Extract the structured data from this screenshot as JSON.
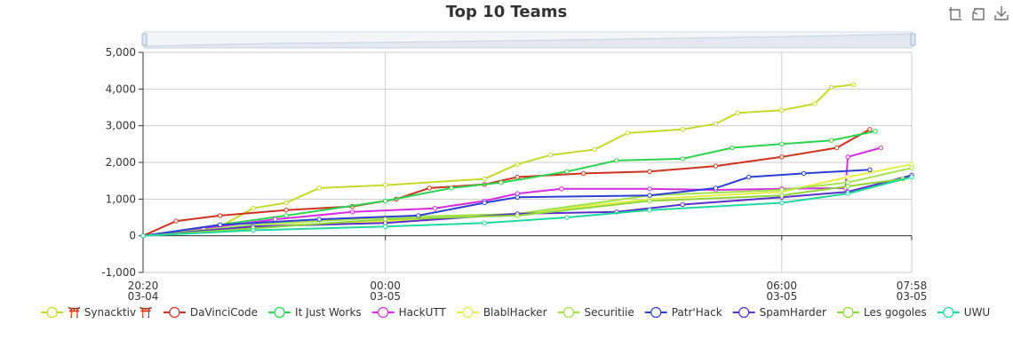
{
  "chart_data": {
    "type": "line",
    "title": "Top 10 Teams",
    "xlabel": "",
    "ylabel": "",
    "ylim": [
      -1000,
      5000
    ],
    "yticks": [
      "-1,000",
      "0",
      "1,000",
      "2,000",
      "3,000",
      "4,000",
      "5,000"
    ],
    "ytick_values": [
      -1000,
      0,
      1000,
      2000,
      3000,
      4000,
      5000
    ],
    "xlim": [
      "2024-03-04 20:20",
      "2024-03-05 07:58"
    ],
    "xticks": [
      {
        "time": "2024-03-04 20:20",
        "line1": "20:20",
        "line2": "03-04"
      },
      {
        "time": "2024-03-05 00:00",
        "line1": "00:00",
        "line2": "03-05"
      },
      {
        "time": "2024-03-05 06:00",
        "line1": "06:00",
        "line2": "03-05"
      },
      {
        "time": "2024-03-05 07:58",
        "line1": "07:58",
        "line2": "03-05"
      }
    ],
    "grid": true,
    "legend_position": "bottom",
    "data_zoom_slider": true,
    "series": [
      {
        "name": "⛩️ Synacktiv ⛩️",
        "color": "#c5d92b",
        "points": [
          [
            "2024-03-04 20:20",
            0
          ],
          [
            "2024-03-04 21:30",
            250
          ],
          [
            "2024-03-04 22:00",
            750
          ],
          [
            "2024-03-04 22:30",
            900
          ],
          [
            "2024-03-04 23:00",
            1300
          ],
          [
            "2024-03-05 00:00",
            1380
          ],
          [
            "2024-03-05 01:30",
            1550
          ],
          [
            "2024-03-05 02:00",
            1950
          ],
          [
            "2024-03-05 02:30",
            2200
          ],
          [
            "2024-03-05 03:10",
            2350
          ],
          [
            "2024-03-05 03:40",
            2800
          ],
          [
            "2024-03-05 04:30",
            2900
          ],
          [
            "2024-03-05 05:00",
            3050
          ],
          [
            "2024-03-05 05:20",
            3350
          ],
          [
            "2024-03-05 06:00",
            3420
          ],
          [
            "2024-03-05 06:30",
            3600
          ],
          [
            "2024-03-05 06:45",
            4050
          ],
          [
            "2024-03-05 07:05",
            4120
          ]
        ]
      },
      {
        "name": "DaVinciCode",
        "color": "#d0321f",
        "points": [
          [
            "2024-03-04 20:20",
            0
          ],
          [
            "2024-03-04 20:50",
            400
          ],
          [
            "2024-03-04 21:30",
            550
          ],
          [
            "2024-03-04 22:30",
            700
          ],
          [
            "2024-03-04 23:30",
            800
          ],
          [
            "2024-03-05 00:10",
            1000
          ],
          [
            "2024-03-05 00:40",
            1300
          ],
          [
            "2024-03-05 01:30",
            1400
          ],
          [
            "2024-03-05 02:00",
            1600
          ],
          [
            "2024-03-05 03:00",
            1700
          ],
          [
            "2024-03-05 04:00",
            1750
          ],
          [
            "2024-03-05 05:00",
            1900
          ],
          [
            "2024-03-05 06:00",
            2150
          ],
          [
            "2024-03-05 06:50",
            2400
          ],
          [
            "2024-03-05 07:20",
            2900
          ]
        ]
      },
      {
        "name": "It Just Works",
        "color": "#2dd34f",
        "points": [
          [
            "2024-03-04 20:20",
            0
          ],
          [
            "2024-03-04 21:30",
            300
          ],
          [
            "2024-03-04 22:30",
            550
          ],
          [
            "2024-03-05 00:00",
            950
          ],
          [
            "2024-03-05 01:00",
            1300
          ],
          [
            "2024-03-05 01:45",
            1450
          ],
          [
            "2024-03-05 02:45",
            1750
          ],
          [
            "2024-03-05 03:30",
            2050
          ],
          [
            "2024-03-05 04:30",
            2100
          ],
          [
            "2024-03-05 05:15",
            2400
          ],
          [
            "2024-03-05 06:00",
            2500
          ],
          [
            "2024-03-05 06:45",
            2600
          ],
          [
            "2024-03-05 07:25",
            2850
          ]
        ]
      },
      {
        "name": "HackUTT",
        "color": "#d42ee0",
        "points": [
          [
            "2024-03-04 20:20",
            0
          ],
          [
            "2024-03-04 21:15",
            200
          ],
          [
            "2024-03-04 22:20",
            450
          ],
          [
            "2024-03-04 23:30",
            650
          ],
          [
            "2024-03-05 00:45",
            750
          ],
          [
            "2024-03-05 01:30",
            950
          ],
          [
            "2024-03-05 02:00",
            1150
          ],
          [
            "2024-03-05 02:40",
            1280
          ],
          [
            "2024-03-05 04:00",
            1280
          ],
          [
            "2024-03-05 05:00",
            1250
          ],
          [
            "2024-03-05 06:00",
            1280
          ],
          [
            "2024-03-05 06:58",
            1300
          ],
          [
            "2024-03-05 07:00",
            2150
          ],
          [
            "2024-03-05 07:30",
            2400
          ]
        ]
      },
      {
        "name": "BlablHacker",
        "color": "#e3ef45",
        "points": [
          [
            "2024-03-04 20:20",
            0
          ],
          [
            "2024-03-04 22:00",
            250
          ],
          [
            "2024-03-05 00:00",
            400
          ],
          [
            "2024-03-05 02:00",
            600
          ],
          [
            "2024-03-05 04:00",
            1000
          ],
          [
            "2024-03-05 06:00",
            1200
          ],
          [
            "2024-03-05 07:00",
            1600
          ],
          [
            "2024-03-05 07:58",
            1950
          ]
        ]
      },
      {
        "name": "Securitiie",
        "color": "#a2e24d",
        "points": [
          [
            "2024-03-04 20:20",
            0
          ],
          [
            "2024-03-04 22:00",
            300
          ],
          [
            "2024-03-05 00:00",
            500
          ],
          [
            "2024-03-05 02:00",
            600
          ],
          [
            "2024-03-05 04:00",
            1100
          ],
          [
            "2024-03-05 06:00",
            1250
          ],
          [
            "2024-03-05 07:00",
            1450
          ],
          [
            "2024-03-05 07:58",
            1850
          ]
        ]
      },
      {
        "name": "Patr'Hack",
        "color": "#2f3fd6",
        "points": [
          [
            "2024-03-04 20:20",
            0
          ],
          [
            "2024-03-04 21:30",
            300
          ],
          [
            "2024-03-04 23:00",
            450
          ],
          [
            "2024-03-05 00:30",
            550
          ],
          [
            "2024-03-05 01:30",
            900
          ],
          [
            "2024-03-05 02:00",
            1050
          ],
          [
            "2024-03-05 04:00",
            1100
          ],
          [
            "2024-03-05 05:00",
            1300
          ],
          [
            "2024-03-05 05:30",
            1600
          ],
          [
            "2024-03-05 06:20",
            1700
          ],
          [
            "2024-03-05 07:20",
            1800
          ]
        ]
      },
      {
        "name": "SpamHarder",
        "color": "#5b2fcc",
        "points": [
          [
            "2024-03-04 20:20",
            0
          ],
          [
            "2024-03-04 22:00",
            250
          ],
          [
            "2024-03-05 00:00",
            350
          ],
          [
            "2024-03-05 02:00",
            600
          ],
          [
            "2024-03-05 03:30",
            650
          ],
          [
            "2024-03-05 04:30",
            850
          ],
          [
            "2024-03-05 06:00",
            1050
          ],
          [
            "2024-03-05 07:00",
            1200
          ],
          [
            "2024-03-05 07:58",
            1650
          ]
        ]
      },
      {
        "name": "Les gogoles",
        "color": "#8fd63b",
        "points": [
          [
            "2024-03-04 20:20",
            0
          ],
          [
            "2024-03-04 22:00",
            200
          ],
          [
            "2024-03-05 00:00",
            450
          ],
          [
            "2024-03-05 02:00",
            550
          ],
          [
            "2024-03-05 04:00",
            950
          ],
          [
            "2024-03-05 06:00",
            1100
          ],
          [
            "2024-03-05 07:00",
            1350
          ],
          [
            "2024-03-05 07:50",
            1550
          ]
        ]
      },
      {
        "name": "UWU",
        "color": "#1fd9a0",
        "points": [
          [
            "2024-03-04 20:20",
            0
          ],
          [
            "2024-03-04 22:00",
            150
          ],
          [
            "2024-03-05 00:00",
            250
          ],
          [
            "2024-03-05 01:30",
            350
          ],
          [
            "2024-03-05 02:45",
            500
          ],
          [
            "2024-03-05 04:00",
            700
          ],
          [
            "2024-03-05 06:00",
            900
          ],
          [
            "2024-03-05 07:00",
            1150
          ],
          [
            "2024-03-05 07:58",
            1600
          ]
        ]
      }
    ]
  }
}
